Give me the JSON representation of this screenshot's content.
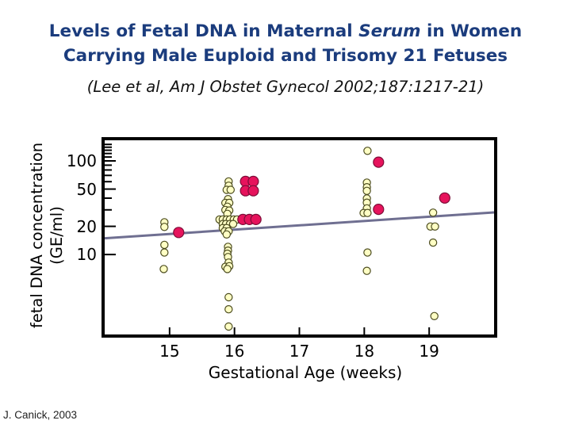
{
  "slide": {
    "title_part1": "Levels of Fetal DNA in Maternal ",
    "title_serum": "Serum",
    "title_part2": " in Women",
    "title_line2": "Carrying Male Euploid and Trisomy 21 Fetuses",
    "title_color": "#1b3c7d",
    "citation": "(Lee et al, Am J Obstet Gynecol 2002;187:1217-21)",
    "credit": "J. Canick, 2003"
  },
  "chart_data": {
    "type": "scatter",
    "xlabel": "Gestational Age (weeks)",
    "ylabel_line1": "fetal DNA concentration",
    "ylabel_line2": "(GE/ml)",
    "x_range": [
      14,
      20
    ],
    "y_range": [
      1.4,
      166
    ],
    "y_scale": "log",
    "x_ticks": [
      15,
      16,
      17,
      18,
      19
    ],
    "y_major_ticks": [
      10,
      20,
      50,
      100
    ],
    "y_minor_ticks": [
      10,
      20,
      30,
      40,
      50,
      60,
      70,
      80,
      90,
      100,
      110,
      120,
      130,
      140,
      150
    ],
    "grid": false,
    "legend": "none",
    "trend_line": {
      "x": [
        14,
        20
      ],
      "y": [
        14.9,
        28.2
      ],
      "color": "#6f6f91",
      "width": 3
    },
    "series": [
      {
        "name": "male euploid",
        "marker": "circle",
        "fill": "#ffffc4",
        "outline": "#4b4b1e",
        "radius": 4.6,
        "points": [
          [
            14.92,
            22.1
          ],
          [
            14.92,
            19.7
          ],
          [
            14.92,
            12.7
          ],
          [
            14.92,
            10.5
          ],
          [
            14.91,
            7.0
          ],
          [
            15.91,
            60.4
          ],
          [
            15.91,
            54.3
          ],
          [
            15.88,
            49.1
          ],
          [
            15.94,
            49.1
          ],
          [
            15.9,
            39.1
          ],
          [
            15.86,
            35.6
          ],
          [
            15.92,
            35.6
          ],
          [
            15.89,
            32.4
          ],
          [
            15.86,
            29.9
          ],
          [
            15.92,
            29.5
          ],
          [
            15.89,
            27.2
          ],
          [
            15.77,
            23.7
          ],
          [
            15.82,
            23.7
          ],
          [
            15.88,
            23.7
          ],
          [
            15.93,
            23.7
          ],
          [
            15.99,
            23.7
          ],
          [
            16.04,
            23.7
          ],
          [
            15.82,
            21.2
          ],
          [
            15.87,
            21.2
          ],
          [
            15.93,
            21.2
          ],
          [
            15.98,
            21.2
          ],
          [
            15.82,
            19.2
          ],
          [
            15.88,
            19.2
          ],
          [
            15.85,
            17.7
          ],
          [
            15.91,
            17.7
          ],
          [
            15.88,
            16.4
          ],
          [
            15.9,
            12.1
          ],
          [
            15.9,
            11.0
          ],
          [
            15.89,
            10.2
          ],
          [
            15.9,
            9.4
          ],
          [
            15.91,
            8.2
          ],
          [
            15.86,
            7.4
          ],
          [
            15.92,
            7.5
          ],
          [
            15.89,
            7.0
          ],
          [
            15.91,
            3.5
          ],
          [
            15.91,
            2.6
          ],
          [
            15.91,
            1.7
          ],
          [
            18.05,
            128.0
          ],
          [
            18.04,
            58.6
          ],
          [
            18.04,
            52.4
          ],
          [
            18.04,
            47.9
          ],
          [
            18.04,
            39.7
          ],
          [
            18.04,
            35.8
          ],
          [
            18.04,
            31.1
          ],
          [
            17.99,
            27.8
          ],
          [
            18.05,
            27.8
          ],
          [
            18.05,
            10.5
          ],
          [
            18.04,
            6.7
          ],
          [
            19.06,
            28.0
          ],
          [
            19.02,
            19.9
          ],
          [
            19.09,
            19.9
          ],
          [
            19.06,
            13.4
          ],
          [
            19.08,
            2.2
          ]
        ]
      },
      {
        "name": "trisomy 21",
        "marker": "circle",
        "fill": "#e6135c",
        "outline": "#7d0d38",
        "radius": 6.5,
        "points": [
          [
            15.14,
            17.2
          ],
          [
            16.17,
            60.4
          ],
          [
            16.29,
            60.4
          ],
          [
            16.17,
            48.0
          ],
          [
            16.29,
            48.0
          ],
          [
            16.13,
            23.7
          ],
          [
            16.23,
            23.7
          ],
          [
            16.33,
            23.7
          ],
          [
            18.22,
            96.9
          ],
          [
            18.22,
            30.4
          ],
          [
            19.24,
            40.2
          ]
        ]
      }
    ]
  }
}
